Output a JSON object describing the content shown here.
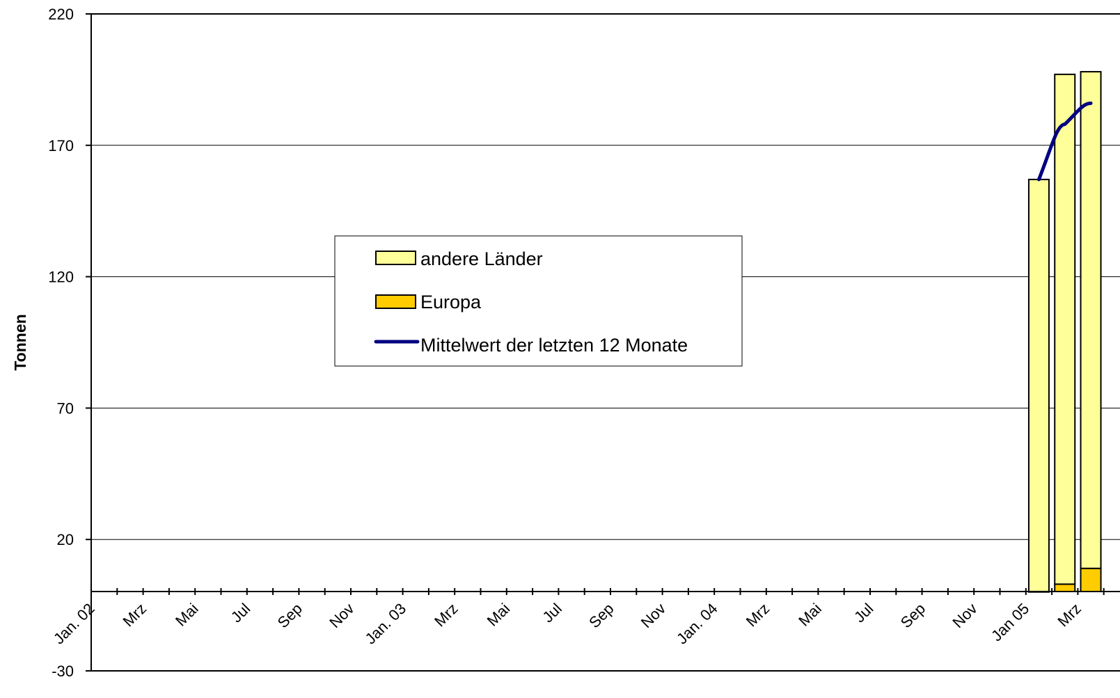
{
  "chart_data": {
    "type": "bar",
    "stacked": true,
    "ylabel": "Tonnen",
    "ylim": [
      -30,
      220
    ],
    "yticks": [
      220,
      170,
      120,
      70,
      20,
      -30
    ],
    "grid": true,
    "legend_position": "center-left",
    "x_tick_labels": [
      "Jan. 02",
      "Mrz",
      "Mai",
      "Jul",
      "Sep",
      "Nov",
      "Jan. 03",
      "Mrz",
      "Mai",
      "Jul",
      "Sep",
      "Nov",
      "Jan. 04",
      "Mrz",
      "Mai",
      "Jul",
      "Sep",
      "Nov",
      "Jan 05",
      "Mrz"
    ],
    "months_total": 40,
    "bars": [
      {
        "month_index": 36,
        "europa": 0,
        "andere": 157
      },
      {
        "month_index": 37,
        "europa": 3,
        "andere": 194
      },
      {
        "month_index": 38,
        "europa": 9,
        "andere": 189
      }
    ],
    "line": {
      "name": "Mittelwert der letzten 12 Monate",
      "points": [
        [
          36,
          157
        ],
        [
          37,
          178
        ],
        [
          38,
          186
        ]
      ]
    },
    "series": [
      {
        "name": "andere Länder",
        "color": "#FFFF99"
      },
      {
        "name": "Europa",
        "color": "#FFCC00"
      },
      {
        "name": "Mittelwert der letzten 12 Monate",
        "color": "#000080"
      }
    ]
  }
}
